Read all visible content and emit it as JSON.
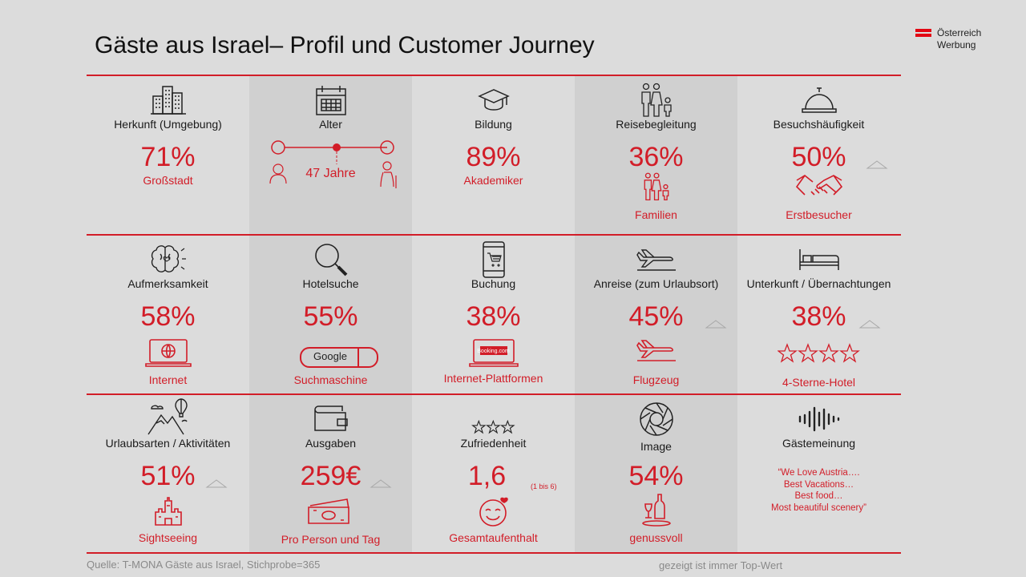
{
  "title": "Gäste aus Israel– Profil und Customer Journey",
  "logo": {
    "line1": "Österreich",
    "line2": "Werbung"
  },
  "colors": {
    "accent": "#d21d28",
    "background": "#dcdcdc",
    "shade": "#d0d0d0"
  },
  "cells": {
    "herkunft": {
      "label": "Herkunft (Umgebung)",
      "value": "71%",
      "sub": "Großstadt",
      "icon": "buildings-icon"
    },
    "alter": {
      "label": "Alter",
      "value": "47 Jahre",
      "icon": "calendar-icon"
    },
    "bildung": {
      "label": "Bildung",
      "value": "89%",
      "sub": "Akademiker",
      "icon": "graduation-cap-icon"
    },
    "reise": {
      "label": "Reisebegleitung",
      "value": "36%",
      "sub": "Familien",
      "icon": "family-icon"
    },
    "besuch": {
      "label": "Besuchshäufigkeit",
      "value": "50%",
      "sub": "Erstbesucher",
      "icon": "reception-bell-icon"
    },
    "aufmerksamkeit": {
      "label": "Aufmerksamkeit",
      "value": "58%",
      "sub": "Internet",
      "icon": "brain-icon"
    },
    "hotelsuche": {
      "label": "Hotelsuche",
      "value": "55%",
      "sub": "Suchmaschine",
      "google": "Google",
      "icon": "magnifier-icon"
    },
    "buchung": {
      "label": "Buchung",
      "value": "38%",
      "sub": "Internet-Plattformen",
      "booking": "Booking.com",
      "icon": "phone-cart-icon"
    },
    "anreise": {
      "label": "Anreise (zum Urlaubsort)",
      "value": "45%",
      "sub": "Flugzeug",
      "icon": "plane-icon"
    },
    "unterkunft": {
      "label": "Unterkunft / Übernachtungen",
      "value": "38%",
      "sub": "4-Sterne-Hotel",
      "stars": 4,
      "icon": "bed-icon"
    },
    "urlaubsarten": {
      "label": "Urlaubsarten / Aktivitäten",
      "value": "51%",
      "sub": "Sightseeing",
      "icon": "mountain-balloon-icon"
    },
    "ausgaben": {
      "label": "Ausgaben",
      "value": "259€",
      "sub": "Pro Person und Tag",
      "icon": "wallet-icon"
    },
    "zufriedenheit": {
      "label": "Zufriedenheit",
      "value": "1,6",
      "scale": "(1 bis 6)",
      "sub": "Gesamtaufenthalt",
      "icon": "three-stars-icon"
    },
    "image": {
      "label": "Image",
      "value": "54%",
      "sub": "genussvoll",
      "icon": "camera-shutter-icon"
    },
    "meinung": {
      "label": "Gästemeinung",
      "quote": [
        "“We Love Austria….",
        "Best Vacations…",
        "Best food…",
        "Most beautiful scenery”"
      ],
      "icon": "soundwave-icon"
    }
  },
  "footer": {
    "source": "Quelle: T-MONA Gäste aus Israel, Stichprobe=365",
    "note": "gezeigt ist immer Top-Wert"
  }
}
